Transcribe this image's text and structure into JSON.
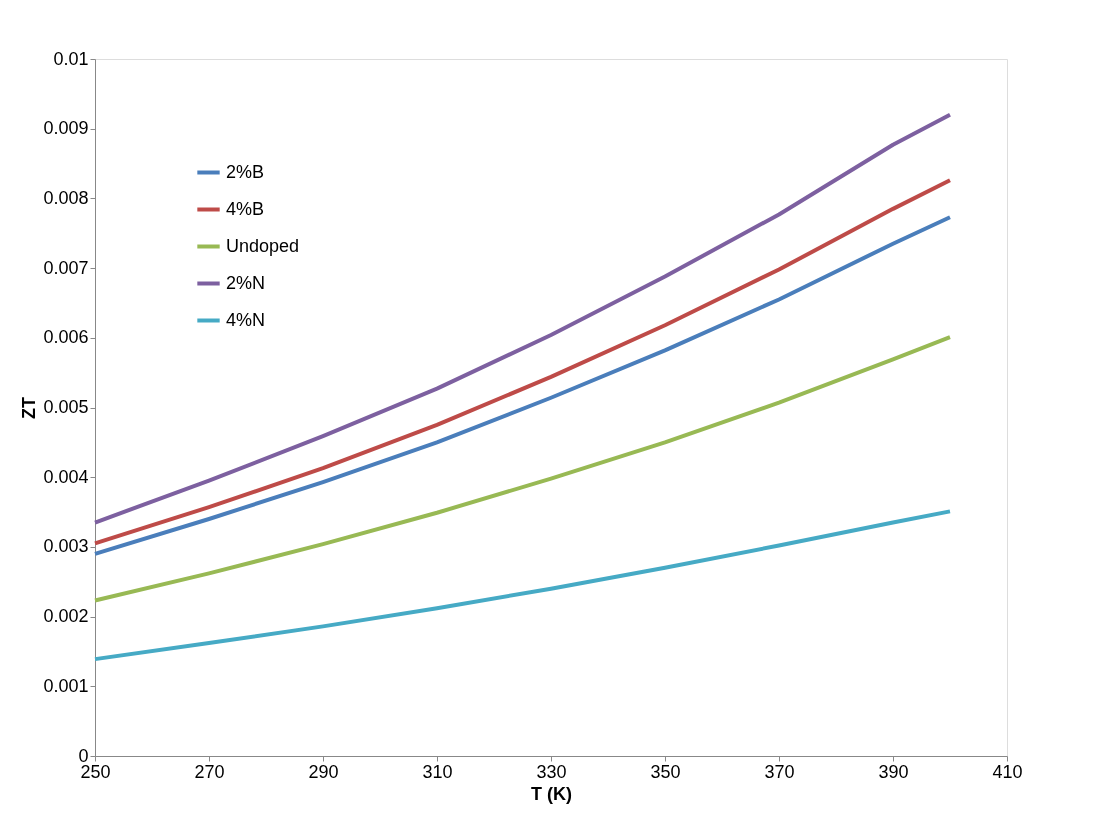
{
  "chart_data": {
    "type": "line",
    "xlabel": "T (K)",
    "ylabel": "ZT",
    "x": [
      250,
      270,
      290,
      310,
      330,
      350,
      370,
      390,
      400
    ],
    "xlim": [
      250,
      410
    ],
    "xticks": [
      250,
      270,
      290,
      310,
      330,
      350,
      370,
      390,
      410
    ],
    "ylim": [
      0,
      0.01
    ],
    "yticks": [
      0,
      0.001,
      0.002,
      0.003,
      0.004,
      0.005,
      0.006,
      0.007,
      0.008,
      0.009,
      0.01
    ],
    "grid": false,
    "legend": "top left",
    "marker": "none",
    "line_style": "solid",
    "series": [
      {
        "name": "2%B",
        "color": "#4a7ebb",
        "values": [
          0.0029,
          0.0034,
          0.00393,
          0.0045,
          0.00514,
          0.00582,
          0.00655,
          0.00735,
          0.00773
        ]
      },
      {
        "name": "4%B",
        "color": "#be4b48",
        "values": [
          0.00305,
          0.00357,
          0.00413,
          0.00475,
          0.00544,
          0.00618,
          0.00698,
          0.00785,
          0.00826
        ]
      },
      {
        "name": "Undoped",
        "color": "#98b954",
        "values": [
          0.00223,
          0.00262,
          0.00304,
          0.00349,
          0.00398,
          0.0045,
          0.00507,
          0.00569,
          0.00601
        ]
      },
      {
        "name": "2%N",
        "color": "#7d60a0",
        "values": [
          0.00335,
          0.00395,
          0.00459,
          0.00527,
          0.00604,
          0.00688,
          0.00777,
          0.00877,
          0.0092
        ]
      },
      {
        "name": "4%N",
        "color": "#46aac5",
        "values": [
          0.00139,
          0.00162,
          0.00186,
          0.00212,
          0.0024,
          0.0027,
          0.00302,
          0.00335,
          0.00351
        ]
      }
    ]
  }
}
